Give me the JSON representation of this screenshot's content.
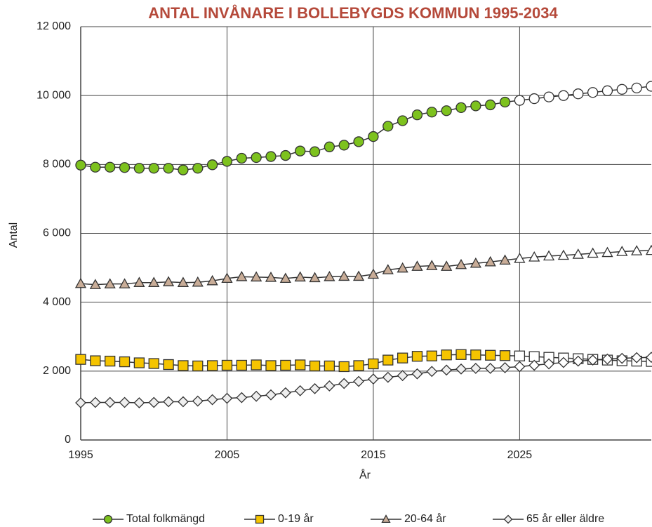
{
  "chart_data": {
    "type": "line",
    "title": "ANTAL INVÅNARE I BOLLEBYGDS KOMMUN 1995-2034",
    "x_label": "År",
    "y_label": "Antal",
    "x": [
      1995,
      1996,
      1997,
      1998,
      1999,
      2000,
      2001,
      2002,
      2003,
      2004,
      2005,
      2006,
      2007,
      2008,
      2009,
      2010,
      2011,
      2012,
      2013,
      2014,
      2015,
      2016,
      2017,
      2018,
      2019,
      2020,
      2021,
      2022,
      2023,
      2024,
      2025,
      2026,
      2027,
      2028,
      2029,
      2030,
      2031,
      2032,
      2033,
      2034
    ],
    "projection_start": 2025,
    "series": [
      {
        "name": "Total folkmängd",
        "color": "#7dc21e",
        "marker": "circle",
        "values": [
          7980,
          7920,
          7920,
          7910,
          7890,
          7890,
          7890,
          7840,
          7890,
          7990,
          8090,
          8180,
          8200,
          8230,
          8260,
          8390,
          8370,
          8510,
          8560,
          8660,
          8810,
          9110,
          9270,
          9440,
          9520,
          9560,
          9650,
          9700,
          9730,
          9810,
          9860,
          9910,
          9960,
          10000,
          10050,
          10090,
          10140,
          10180,
          10220,
          10270
        ]
      },
      {
        "name": "0-19 år",
        "color": "#f5c400",
        "marker": "square",
        "values": [
          2340,
          2300,
          2290,
          2270,
          2240,
          2220,
          2190,
          2160,
          2150,
          2160,
          2170,
          2170,
          2180,
          2160,
          2170,
          2180,
          2150,
          2150,
          2130,
          2160,
          2210,
          2320,
          2380,
          2430,
          2440,
          2470,
          2480,
          2470,
          2460,
          2450,
          2440,
          2420,
          2400,
          2380,
          2360,
          2340,
          2320,
          2300,
          2290,
          2280
        ]
      },
      {
        "name": "20-64 år",
        "color": "#c9ad98",
        "marker": "triangle",
        "values": [
          4540,
          4510,
          4530,
          4530,
          4570,
          4570,
          4590,
          4570,
          4580,
          4620,
          4690,
          4740,
          4730,
          4720,
          4690,
          4730,
          4710,
          4740,
          4750,
          4750,
          4810,
          4940,
          4990,
          5040,
          5060,
          5040,
          5090,
          5130,
          5170,
          5220,
          5270,
          5310,
          5340,
          5360,
          5390,
          5420,
          5440,
          5470,
          5490,
          5500
        ]
      },
      {
        "name": "65 år eller äldre",
        "color": "#eeeeee",
        "marker": "diamond",
        "values": [
          1080,
          1090,
          1090,
          1090,
          1080,
          1090,
          1110,
          1110,
          1130,
          1170,
          1210,
          1230,
          1270,
          1310,
          1370,
          1430,
          1490,
          1570,
          1640,
          1700,
          1770,
          1820,
          1870,
          1920,
          1990,
          2030,
          2060,
          2080,
          2080,
          2100,
          2130,
          2170,
          2210,
          2250,
          2290,
          2320,
          2350,
          2370,
          2390,
          2400
        ]
      }
    ],
    "xlim": [
      1995,
      2034
    ],
    "xticks": [
      1995,
      2005,
      2015,
      2025
    ],
    "ylim": [
      0,
      12000
    ],
    "yticks": [
      0,
      {
        "value": 2000,
        "label": "2 000"
      },
      {
        "value": 4000,
        "label": "4 000"
      },
      {
        "value": 6000,
        "label": "6 000"
      },
      {
        "value": 8000,
        "label": "8 000"
      },
      {
        "value": 10000,
        "label": "10 000"
      },
      {
        "value": 12000,
        "label": "12 000"
      }
    ],
    "grid": true,
    "legend": "bottom"
  }
}
